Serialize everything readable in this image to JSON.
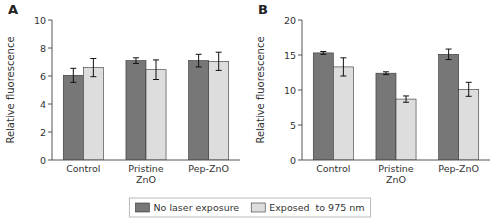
{
  "chart_data": [
    {
      "type": "bar",
      "title": "A",
      "categories": [
        "Control",
        "Pristine\nZnO",
        "Pep-ZnO"
      ],
      "series": [
        {
          "name": "No laser exposure",
          "color": "#777777",
          "values": [
            6.05,
            7.1,
            7.1
          ],
          "errors": [
            0.5,
            0.2,
            0.45
          ]
        },
        {
          "name": "Exposed  to 975 nm",
          "color": "#dddddd",
          "values": [
            6.6,
            6.45,
            7.05
          ],
          "errors": [
            0.65,
            0.7,
            0.65
          ]
        }
      ],
      "ylim": [
        0,
        10
      ],
      "yticks": [
        0,
        2,
        4,
        6,
        8,
        10
      ],
      "ylabel": "Relative fluorescence",
      "grid": false,
      "legend": "bottom"
    },
    {
      "type": "bar",
      "title": "B",
      "categories": [
        "Control",
        "Pristine\nZnO",
        "Pep-ZnO"
      ],
      "series": [
        {
          "name": "No laser exposure",
          "color": "#777777",
          "values": [
            15.3,
            12.4,
            15.1
          ],
          "errors": [
            0.2,
            0.2,
            0.75
          ]
        },
        {
          "name": "Exposed  to 975 nm",
          "color": "#dddddd",
          "values": [
            13.3,
            8.7,
            10.1
          ],
          "errors": [
            1.3,
            0.45,
            1.0
          ]
        }
      ],
      "ylim": [
        0,
        20
      ],
      "yticks": [
        0,
        5,
        10,
        15,
        20
      ],
      "ylabel": "Relative fluorescence",
      "grid": false
    }
  ]
}
